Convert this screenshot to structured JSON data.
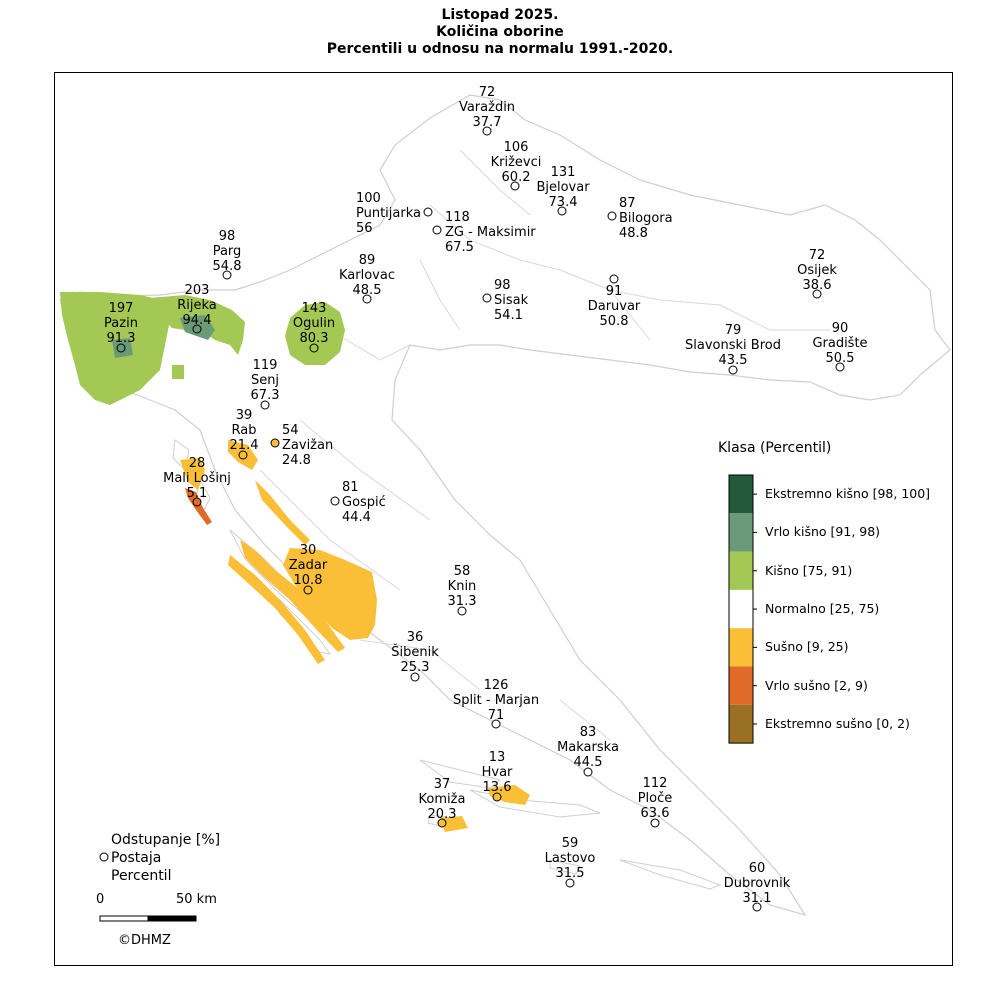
{
  "title": {
    "line1": "Listopad 2025.",
    "line2": "Količina oborine",
    "line3": "Percentili u odnosu na normalu 1991.-2020."
  },
  "stations": [
    {
      "name": "Varaždin",
      "deviation": "72",
      "percentile": "37.7",
      "class": "normal"
    },
    {
      "name": "Križevci",
      "deviation": "106",
      "percentile": "60.2",
      "class": "normal"
    },
    {
      "name": "Bjelovar",
      "deviation": "131",
      "percentile": "73.4",
      "class": "normal"
    },
    {
      "name": "Bilogora",
      "deviation": "87",
      "percentile": "48.8",
      "class": "normal"
    },
    {
      "name": "Puntijarka",
      "deviation": "100",
      "percentile": "56",
      "class": "normal"
    },
    {
      "name": "ZG - Maksimir",
      "deviation": "118",
      "percentile": "67.5",
      "class": "normal"
    },
    {
      "name": "Karlovac",
      "deviation": "89",
      "percentile": "48.5",
      "class": "normal"
    },
    {
      "name": "Sisak",
      "deviation": "98",
      "percentile": "54.1",
      "class": "normal"
    },
    {
      "name": "Daruvar",
      "deviation": "91",
      "percentile": "50.8",
      "class": "normal"
    },
    {
      "name": "Osijek",
      "deviation": "72",
      "percentile": "38.6",
      "class": "normal"
    },
    {
      "name": "Gradište",
      "deviation": "90",
      "percentile": "50.5",
      "class": "normal"
    },
    {
      "name": "Slavonski Brod",
      "deviation": "79",
      "percentile": "43.5",
      "class": "normal"
    },
    {
      "name": "Parg",
      "deviation": "98",
      "percentile": "54.8",
      "class": "normal"
    },
    {
      "name": "Rijeka",
      "deviation": "203",
      "percentile": "94.4",
      "class": "vrlo-kisno"
    },
    {
      "name": "Pazin",
      "deviation": "197",
      "percentile": "91.3",
      "class": "vrlo-kisno"
    },
    {
      "name": "Ogulin",
      "deviation": "143",
      "percentile": "80.3",
      "class": "kisno"
    },
    {
      "name": "Senj",
      "deviation": "119",
      "percentile": "67.3",
      "class": "normal"
    },
    {
      "name": "Rab",
      "deviation": "39",
      "percentile": "21.4",
      "class": "susno"
    },
    {
      "name": "Zavižan",
      "deviation": "54",
      "percentile": "24.8",
      "class": "susno"
    },
    {
      "name": "Mali Lošinj",
      "deviation": "28",
      "percentile": "5.1",
      "class": "vrlo-susno"
    },
    {
      "name": "Gospić",
      "deviation": "81",
      "percentile": "44.4",
      "class": "normal"
    },
    {
      "name": "Zadar",
      "deviation": "30",
      "percentile": "10.8",
      "class": "susno"
    },
    {
      "name": "Knin",
      "deviation": "58",
      "percentile": "31.3",
      "class": "normal"
    },
    {
      "name": "Šibenik",
      "deviation": "36",
      "percentile": "25.3",
      "class": "normal"
    },
    {
      "name": "Split - Marjan",
      "deviation": "126",
      "percentile": "71",
      "class": "normal"
    },
    {
      "name": "Makarska",
      "deviation": "83",
      "percentile": "44.5",
      "class": "normal"
    },
    {
      "name": "Hvar",
      "deviation": "13",
      "percentile": "13.6",
      "class": "susno"
    },
    {
      "name": "Komiža",
      "deviation": "37",
      "percentile": "20.3",
      "class": "susno"
    },
    {
      "name": "Ploče",
      "deviation": "112",
      "percentile": "63.6",
      "class": "normal"
    },
    {
      "name": "Lastovo",
      "deviation": "59",
      "percentile": "31.5",
      "class": "normal"
    },
    {
      "name": "Dubrovnik",
      "deviation": "60",
      "percentile": "31.1",
      "class": "normal"
    }
  ],
  "legend": {
    "title": "Klasa (Percentil)",
    "classes": [
      {
        "label": "Ekstremno kišno [98, 100]",
        "color": "#245a3a"
      },
      {
        "label": "Vrlo kišno [91, 98)",
        "color": "#6a9a77"
      },
      {
        "label": "Kišno [75, 91)",
        "color": "#a3c853"
      },
      {
        "label": "Normalno [25, 75)",
        "color": "#ffffff"
      },
      {
        "label": "Sušno [9, 25)",
        "color": "#fbbf37"
      },
      {
        "label": "Vrlo sušno [2, 9)",
        "color": "#e06b29"
      },
      {
        "label": "Ekstremno sušno [0, 2)",
        "color": "#9a7123"
      }
    ]
  },
  "key": {
    "line1": "Odstupanje [%]",
    "line2": "Postaja",
    "line3": "Percentil"
  },
  "scale": {
    "start": "0",
    "end": "50 km"
  },
  "copyright": "©DHMZ",
  "colors": {
    "border": "#cfcfcf",
    "frame": "#000000"
  }
}
